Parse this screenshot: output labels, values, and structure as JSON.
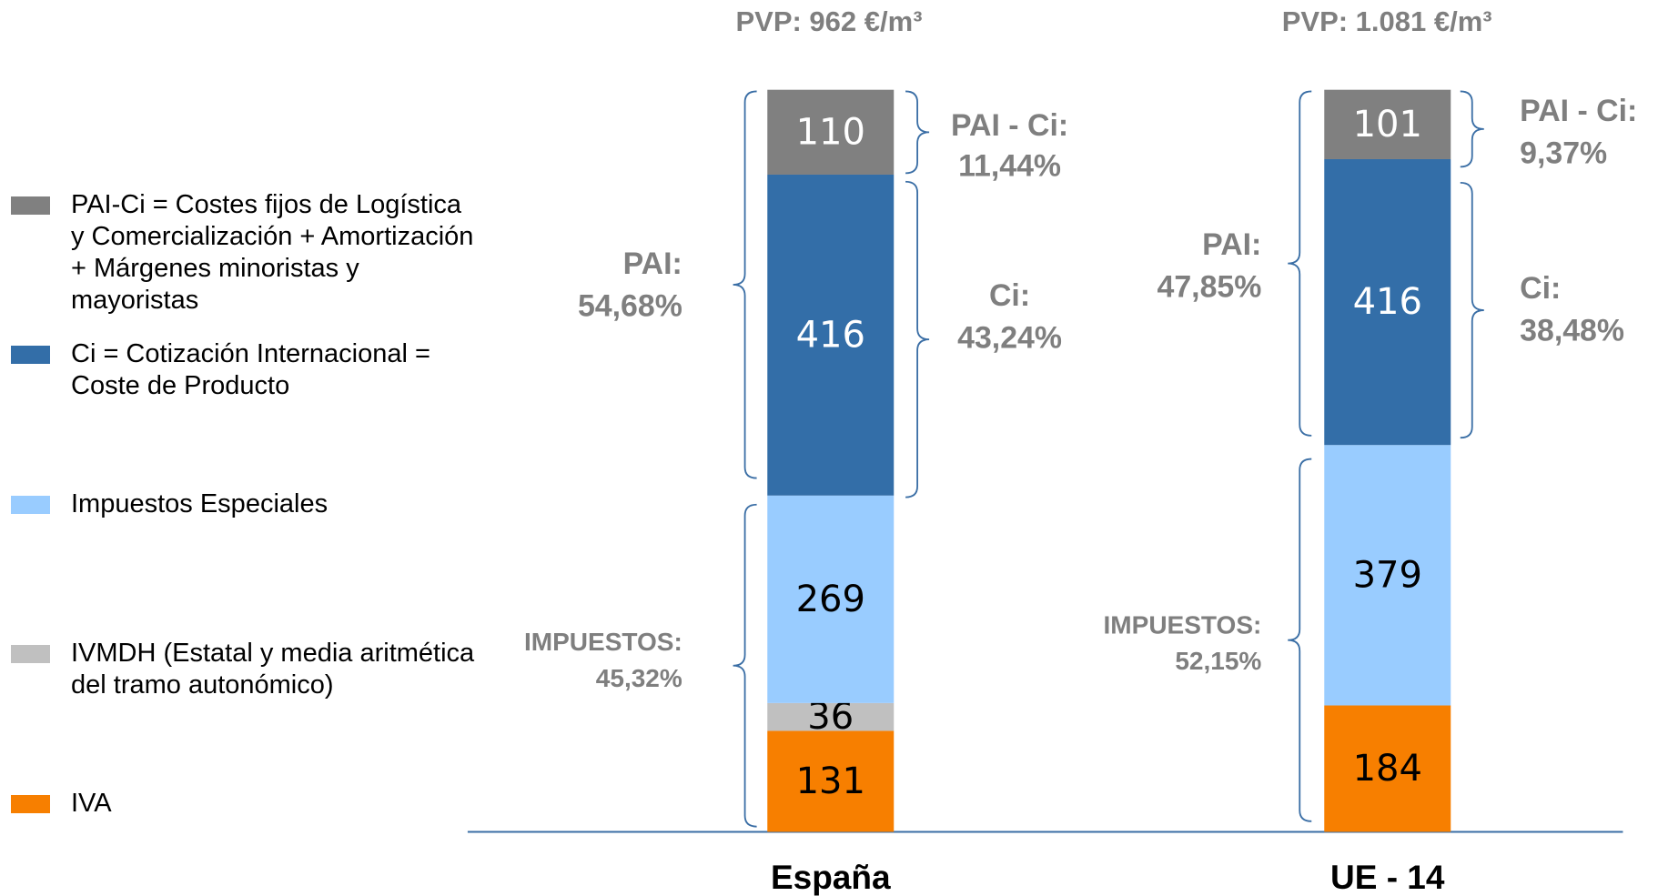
{
  "chart_data": {
    "type": "bar",
    "stacking": "percent",
    "categories": [
      "España",
      "UE - 14"
    ],
    "series": [
      {
        "name": "IVA",
        "color": "#f77f00",
        "values": [
          131,
          184
        ]
      },
      {
        "name": "IVMDH (Estatal y media aritmética del tramo autonómico)",
        "color": "#c0c0c0",
        "values": [
          36,
          null
        ]
      },
      {
        "name": "Impuestos Especiales",
        "color": "#99ccff",
        "values": [
          269,
          379
        ]
      },
      {
        "name": "Ci = Cotización Internacional = Coste de Producto",
        "color": "#336ea8",
        "values": [
          416,
          416
        ]
      },
      {
        "name": "PAI-Ci = Costes fijos de Logística y Comercialización + Amortización + Márgenes minoristas y mayoristas",
        "color": "#808080",
        "values": [
          110,
          101
        ]
      }
    ],
    "totals_labels": [
      "PVP: 962 €/m³",
      "PVP: 1.081 €/m³"
    ],
    "brackets": [
      {
        "lines": [
          "PAI - Ci:",
          "11,44%"
        ]
      },
      {
        "lines": [
          "Ci:",
          "43,24%"
        ]
      },
      {
        "lines": [
          "PAI:",
          "54,68%"
        ]
      },
      {
        "lines": [
          "IMPUESTOS:",
          "45,32%"
        ]
      },
      {
        "lines": [
          "PAI - Ci:",
          "9,37%"
        ]
      },
      {
        "lines": [
          "Ci:",
          "38,48%"
        ]
      },
      {
        "lines": [
          "PAI:",
          "47,85%"
        ]
      },
      {
        "lines": [
          "IMPUESTOS:",
          "52,15%"
        ]
      }
    ]
  }
}
